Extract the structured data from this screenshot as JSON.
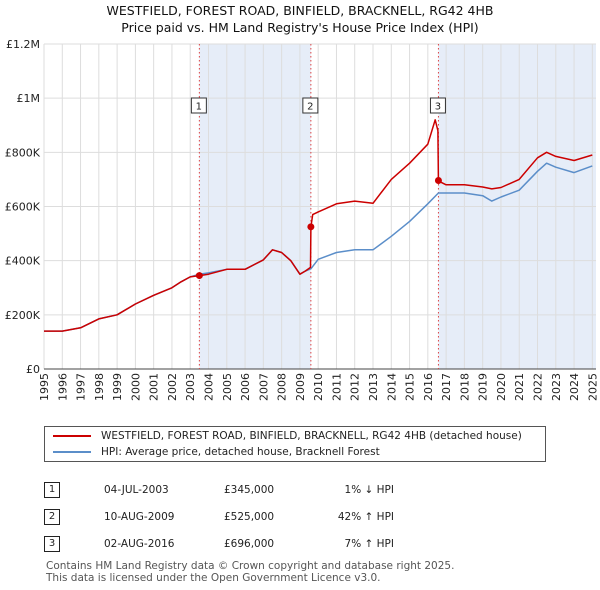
{
  "header": {
    "line1": "WESTFIELD, FOREST ROAD, BINFIELD, BRACKNELL, RG42 4HB",
    "line2": "Price paid vs. HM Land Registry's House Price Index (HPI)"
  },
  "chart_data": {
    "type": "line",
    "title": "WESTFIELD, FOREST ROAD, BINFIELD, BRACKNELL, RG42 4HB",
    "subtitle": "Price paid vs. HM Land Registry's House Price Index (HPI)",
    "xlabel": "",
    "ylabel": "",
    "xlim": [
      1995,
      2025.2
    ],
    "ylim": [
      0,
      1200000
    ],
    "x_ticks": [
      1995,
      1996,
      1997,
      1998,
      1999,
      2000,
      2001,
      2002,
      2003,
      2004,
      2005,
      2006,
      2007,
      2008,
      2009,
      2010,
      2011,
      2012,
      2013,
      2014,
      2015,
      2016,
      2017,
      2018,
      2019,
      2020,
      2021,
      2022,
      2023,
      2024,
      2025
    ],
    "y_ticks": [
      {
        "value": 0,
        "label": "£0"
      },
      {
        "value": 200000,
        "label": "£200K"
      },
      {
        "value": 400000,
        "label": "£400K"
      },
      {
        "value": 600000,
        "label": "£600K"
      },
      {
        "value": 800000,
        "label": "£800K"
      },
      {
        "value": 1000000,
        "label": "£1M"
      },
      {
        "value": 1200000,
        "label": "£1.2M"
      }
    ],
    "grid": true,
    "shaded_periods": [
      [
        2003.5,
        2009.6
      ],
      [
        2016.58,
        2025.2
      ]
    ],
    "series": [
      {
        "name": "WESTFIELD, FOREST ROAD, BINFIELD, BRACKNELL, RG42 4HB (detached house)",
        "color": "#cc0000",
        "x": [
          1995.0,
          1996.0,
          1997.0,
          1998.0,
          1999.0,
          2000.0,
          2001.0,
          2002.0,
          2002.5,
          2003.0,
          2003.5,
          2004.0,
          2005.0,
          2006.0,
          2007.0,
          2007.5,
          2008.0,
          2008.5,
          2009.0,
          2009.3,
          2009.58,
          2009.6,
          2009.7,
          2010.0,
          2011.0,
          2012.0,
          2013.0,
          2014.0,
          2015.0,
          2016.0,
          2016.4,
          2016.55,
          2016.58,
          2016.7,
          2017.0,
          2018.0,
          2019.0,
          2019.5,
          2020.0,
          2021.0,
          2022.0,
          2022.5,
          2023.0,
          2024.0,
          2025.0
        ],
        "y": [
          140000,
          140000,
          152000,
          185000,
          200000,
          240000,
          272000,
          300000,
          322000,
          340000,
          345000,
          350000,
          368000,
          368000,
          403000,
          440000,
          430000,
          400000,
          350000,
          362000,
          375000,
          525000,
          570000,
          580000,
          610000,
          620000,
          612000,
          700000,
          760000,
          830000,
          920000,
          880000,
          696000,
          690000,
          680000,
          680000,
          672000,
          665000,
          670000,
          700000,
          780000,
          800000,
          785000,
          770000,
          790000
        ]
      },
      {
        "name": "HPI: Average price, detached house, Bracknell Forest",
        "color": "#5b8ec9",
        "x": [
          1995.0,
          1996.0,
          1997.0,
          1998.0,
          1999.0,
          2000.0,
          2001.0,
          2002.0,
          2002.5,
          2003.0,
          2003.5,
          2004.0,
          2005.0,
          2006.0,
          2007.0,
          2007.5,
          2008.0,
          2008.5,
          2009.0,
          2009.3,
          2009.6,
          2010.0,
          2011.0,
          2012.0,
          2013.0,
          2014.0,
          2015.0,
          2016.0,
          2016.58,
          2017.0,
          2018.0,
          2019.0,
          2019.5,
          2020.0,
          2021.0,
          2022.0,
          2022.5,
          2023.0,
          2024.0,
          2025.0
        ],
        "y": [
          140000,
          140000,
          152000,
          185000,
          200000,
          240000,
          272000,
          300000,
          322000,
          340000,
          350000,
          355000,
          368000,
          368000,
          403000,
          440000,
          430000,
          400000,
          350000,
          362000,
          370000,
          405000,
          430000,
          440000,
          440000,
          490000,
          545000,
          610000,
          650000,
          650000,
          650000,
          640000,
          620000,
          635000,
          660000,
          730000,
          760000,
          745000,
          725000,
          750000
        ]
      }
    ],
    "annotations": [
      {
        "label": "1",
        "x": 2003.5,
        "y": 345000
      },
      {
        "label": "2",
        "x": 2009.6,
        "y": 525000
      },
      {
        "label": "3",
        "x": 2016.58,
        "y": 696000
      }
    ]
  },
  "legend": {
    "entries": [
      {
        "label": "WESTFIELD, FOREST ROAD, BINFIELD, BRACKNELL, RG42 4HB (detached house)",
        "color": "#cc0000"
      },
      {
        "label": "HPI: Average price, detached house, Bracknell Forest",
        "color": "#5b8ec9"
      }
    ]
  },
  "sales": [
    {
      "num": "1",
      "date": "04-JUL-2003",
      "price": "£345,000",
      "pct": "1% ↓ HPI"
    },
    {
      "num": "2",
      "date": "10-AUG-2009",
      "price": "£525,000",
      "pct": "42% ↑ HPI"
    },
    {
      "num": "3",
      "date": "02-AUG-2016",
      "price": "£696,000",
      "pct": "7% ↑ HPI"
    }
  ],
  "footer": {
    "line1": "Contains HM Land Registry data © Crown copyright and database right 2025.",
    "line2": "This data is licensed under the Open Government Licence v3.0."
  }
}
